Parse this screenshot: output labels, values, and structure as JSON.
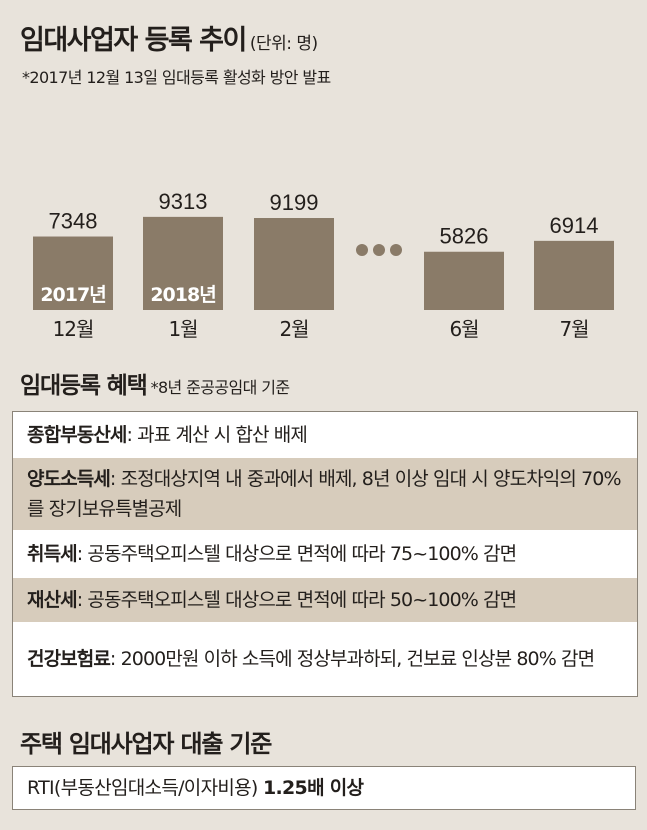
{
  "header": {
    "title": "임대사업자 등록 추이",
    "unit": "(단위: 명)",
    "note": "*2017년 12월 13일 임대등록 활성화 방안 발표"
  },
  "chart_data": {
    "type": "bar",
    "categories": [
      "12월",
      "1월",
      "2월",
      "6월",
      "7월"
    ],
    "values": [
      7348,
      9313,
      9199,
      5826,
      6914
    ],
    "value_labels": [
      "7348",
      "9313",
      "9199",
      "5826",
      "6914"
    ],
    "year_labels": [
      "2017년",
      "2018년",
      "",
      "",
      ""
    ],
    "gap_marker": "…",
    "ylim": [
      0,
      10000
    ],
    "grid": false,
    "bar_color": "#8a7b68",
    "title": "임대사업자 등록 추이",
    "ylabel": "(단위: 명)"
  },
  "benefits": {
    "heading": "임대등록 혜택",
    "note": "*8년 준공공임대 기준",
    "items": [
      {
        "key": "종합부동산세",
        "sep": ": ",
        "text": "과표 계산 시 합산 배제"
      },
      {
        "key": "양도소득세",
        "sep": ": ",
        "text": "조정대상지역 내 중과에서 배제, 8년 이상 임대 시 양도차익의 70%를 장기보유특별공제"
      },
      {
        "key": "취득세",
        "sep": ": ",
        "text": "공동주택오피스텔 대상으로 면적에 따라 75~100% 감면"
      },
      {
        "key": "재산세",
        "sep": ": ",
        "text": "공동주택오피스텔 대상으로 면적에 따라 50~100% 감면"
      },
      {
        "key": "건강보험료",
        "sep": ": ",
        "text": "2000만원 이하 소득에 정상부과하되, 건보료 인상분 80% 감면"
      }
    ]
  },
  "loan": {
    "heading": "주택 임대사업자 대출 기준",
    "text": "RTI(부동산임대소득/이자비용) ",
    "value": "1.25배 이상"
  },
  "colors": {
    "background": "#e8e3db",
    "bar": "#8a7b68",
    "row_shade": "#d7ccbc"
  }
}
